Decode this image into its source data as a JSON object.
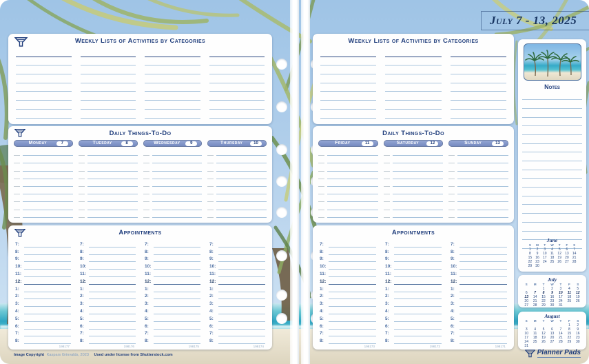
{
  "title": "July 7 - 13, 2025",
  "sections": {
    "weekly": "Weekly Lists of Activities by Categories",
    "daily": "Daily Things-To-Do",
    "appointments": "Appointments",
    "notes": "Notes"
  },
  "left_page": {
    "days": [
      {
        "label": "Monday",
        "date": "7"
      },
      {
        "label": "Tuesday",
        "date": "8"
      },
      {
        "label": "Wednesday",
        "date": "9"
      },
      {
        "label": "Thursday",
        "date": "10"
      }
    ],
    "form_codes": [
      "198177",
      "198176",
      "198175",
      "198174"
    ]
  },
  "right_page": {
    "days": [
      {
        "label": "Friday",
        "date": "11"
      },
      {
        "label": "Saturday",
        "date": "12"
      },
      {
        "label": "Sunday",
        "date": "13"
      }
    ],
    "form_codes": [
      "198173",
      "198172",
      "198171"
    ]
  },
  "appointments": {
    "times": [
      "7",
      "8",
      "9",
      "10",
      "11",
      "12",
      "1",
      "2",
      "3",
      "4",
      "5",
      "6",
      "7",
      "8"
    ],
    "noon": "12"
  },
  "calendars": [
    {
      "month": "June",
      "dow": [
        "S",
        "M",
        "T",
        "W",
        "T",
        "F",
        "S"
      ],
      "weeks": [
        [
          "1",
          "2",
          "3",
          "4",
          "5",
          "6",
          "7"
        ],
        [
          "8",
          "9",
          "10",
          "11",
          "12",
          "13",
          "14"
        ],
        [
          "15",
          "16",
          "17",
          "18",
          "19",
          "20",
          "21"
        ],
        [
          "22",
          "23",
          "24",
          "25",
          "26",
          "27",
          "28"
        ],
        [
          "29",
          "30",
          "",
          "",
          "",
          "",
          ""
        ]
      ],
      "bold_dates": []
    },
    {
      "month": "July",
      "dow": [
        "S",
        "M",
        "T",
        "W",
        "T",
        "F",
        "S"
      ],
      "weeks": [
        [
          "",
          "",
          "1",
          "2",
          "3",
          "4",
          "5"
        ],
        [
          "6",
          "7",
          "8",
          "9",
          "10",
          "11",
          "12"
        ],
        [
          "13",
          "14",
          "15",
          "16",
          "17",
          "18",
          "19"
        ],
        [
          "20",
          "21",
          "22",
          "23",
          "24",
          "25",
          "26"
        ],
        [
          "27",
          "28",
          "29",
          "30",
          "31",
          "",
          ""
        ]
      ],
      "bold_dates": [
        "7",
        "8",
        "9",
        "10",
        "11",
        "12",
        "13"
      ]
    },
    {
      "month": "August",
      "dow": [
        "S",
        "M",
        "T",
        "W",
        "T",
        "F",
        "S"
      ],
      "weeks": [
        [
          "",
          "",
          "",
          "",
          "",
          "1",
          "2"
        ],
        [
          "3",
          "4",
          "5",
          "6",
          "7",
          "8",
          "9"
        ],
        [
          "10",
          "11",
          "12",
          "13",
          "14",
          "15",
          "16"
        ],
        [
          "17",
          "18",
          "19",
          "20",
          "21",
          "22",
          "23"
        ],
        [
          "24",
          "25",
          "26",
          "27",
          "28",
          "29",
          "30"
        ],
        [
          "31",
          "",
          "",
          "",
          "",
          "",
          ""
        ]
      ],
      "bold_dates": []
    }
  ],
  "footer": {
    "copyright_label": "Image Copyright",
    "copyright_name": "Kaspars Grinvalds, 2023",
    "license_text": "Used under license from Shutterstock.com",
    "brand": "Planner Pads"
  },
  "colors": {
    "navy": "#1e3c7b",
    "light_line": "#a9c4dd",
    "pill_blue": "#8095c6",
    "sea": "#2fa6c2",
    "sand": "#e3dcc9"
  }
}
